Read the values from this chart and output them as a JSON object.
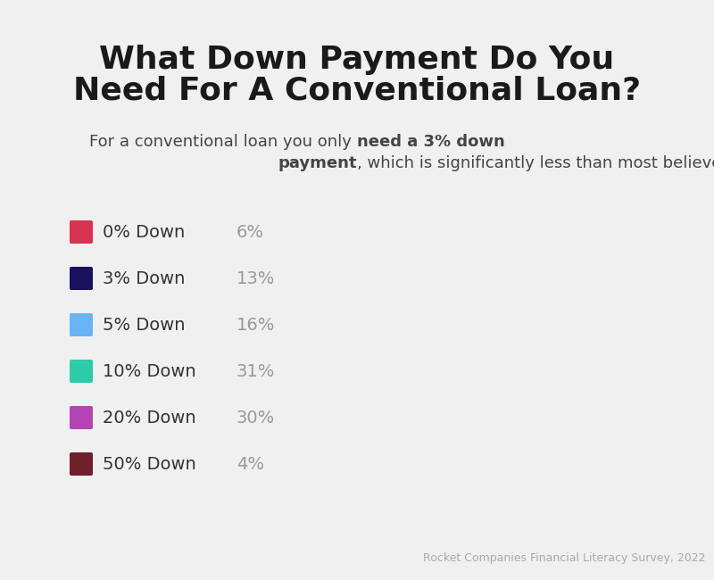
{
  "title_line1": "What Down Payment Do You",
  "title_line2": "Need For A Conventional Loan?",
  "sub_normal1": "For a conventional loan you only ",
  "sub_bold1": "need a 3% down",
  "sub_bold2": "payment",
  "sub_normal2": ", which is significantly less than most believe.",
  "legend_labels": [
    "0% Down",
    "3% Down",
    "5% Down",
    "10% Down",
    "20% Down",
    "50% Down"
  ],
  "legend_values": [
    "6%",
    "13%",
    "16%",
    "31%",
    "30%",
    "4%"
  ],
  "legend_colors": [
    "#d63251",
    "#1a1060",
    "#6ab4f5",
    "#2ecba8",
    "#b444b4",
    "#6e1f2a"
  ],
  "source_text": "Rocket Companies Financial Literacy Survey, 2022",
  "background_color": "#f0f0f0",
  "title_color": "#1a1a1a",
  "subtitle_color": "#444444",
  "legend_label_color": "#333333",
  "legend_value_color": "#999999",
  "source_color": "#aaaaaa",
  "fig_width": 8.0,
  "fig_height": 6.5,
  "dpi": 100
}
